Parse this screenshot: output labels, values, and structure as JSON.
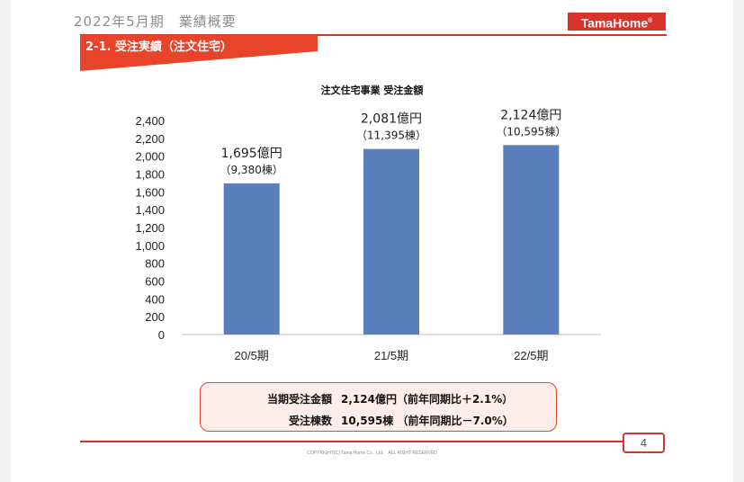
{
  "header": {
    "title": "2022年5月期　業績概要",
    "logo_text": "TamaHome",
    "logo_mark": "®",
    "section_title": "2-1. 受注実績（注文住宅）"
  },
  "colors": {
    "brand_red": "#d9342b",
    "banner_red": "#e8442a",
    "bar_blue": "#5b7fba",
    "summary_bg": "#fdeeea"
  },
  "chart_data": {
    "type": "bar",
    "title": "注文住宅事業 受注金額",
    "categories": [
      "20/5期",
      "21/5期",
      "22/5期"
    ],
    "values": [
      1695,
      2081,
      2124
    ],
    "value_labels": [
      "1,695億円",
      "2,081億円",
      "2,124億円"
    ],
    "count_labels": [
      "（9,380棟）",
      "（11,395棟）",
      "（10,595棟）"
    ],
    "ylim": [
      0,
      2400
    ],
    "yticks": [
      0,
      200,
      400,
      600,
      800,
      1000,
      1200,
      1400,
      1600,
      1800,
      2000,
      2200,
      2400
    ],
    "ytick_labels": [
      "0",
      "200",
      "400",
      "600",
      "800",
      "1,000",
      "1,200",
      "1,400",
      "1,600",
      "1,800",
      "2,000",
      "2,200",
      "2,400"
    ],
    "grid": false,
    "legend": "none"
  },
  "summary": {
    "row1_label": "当期受注金額",
    "row1_value": "2,124億円（前年同期比＋2.1%）",
    "row2_label": "受注棟数",
    "row2_value": "10,595棟 （前年同期比－7.0%）"
  },
  "footer": {
    "page_number": "4",
    "copyright": "COPYRIGHT(C) Tama Home Co., Ltd.　ALL RIGHT RESERVED"
  }
}
